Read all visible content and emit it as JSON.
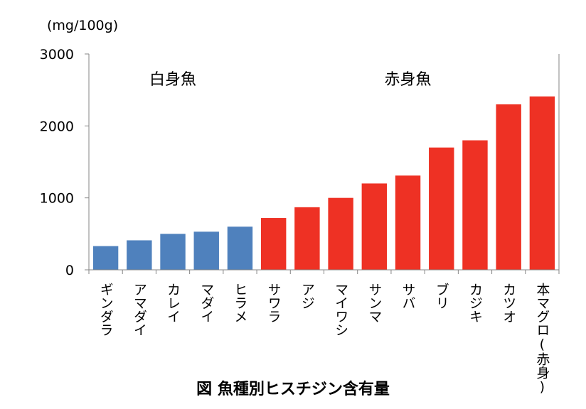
{
  "chart_data": {
    "type": "bar",
    "unit_label": "(mg/100g)",
    "caption": "図 魚種別ヒスチジン含有量",
    "categories": [
      "ギンダラ",
      "アマダイ",
      "カレイ",
      "マダイ",
      "ヒラメ",
      "サワラ",
      "アジ",
      "マイワシ",
      "サンマ",
      "サバ",
      "ブリ",
      "カジキ",
      "カツオ",
      "本マグロ(赤身)"
    ],
    "values": [
      330,
      410,
      500,
      530,
      600,
      720,
      870,
      1000,
      1200,
      1310,
      1700,
      1800,
      2300,
      2410
    ],
    "groups": [
      {
        "label": "白身魚",
        "start": 0,
        "end": 4,
        "color": "#4f81bd"
      },
      {
        "label": "赤身魚",
        "start": 5,
        "end": 13,
        "color": "#ee3124"
      }
    ],
    "yticks": [
      "0",
      "1000",
      "2000",
      "3000"
    ],
    "ylim": [
      0,
      3000
    ],
    "grid": false
  }
}
